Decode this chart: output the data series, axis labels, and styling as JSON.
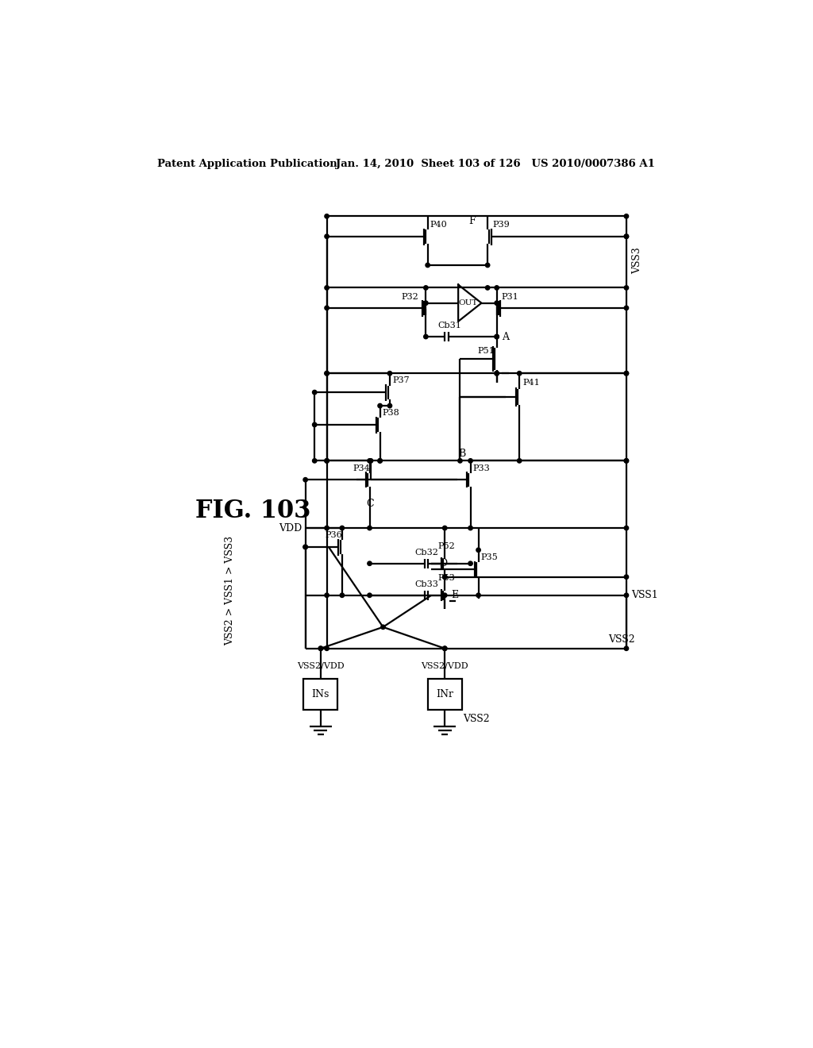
{
  "header_left": "Patent Application Publication",
  "header_right": "Jan. 14, 2010  Sheet 103 of 126   US 2010/0007386 A1",
  "fig_label": "FIG. 103",
  "note": "VSS2 > VSS1 > VSS3",
  "bg_color": "#ffffff"
}
